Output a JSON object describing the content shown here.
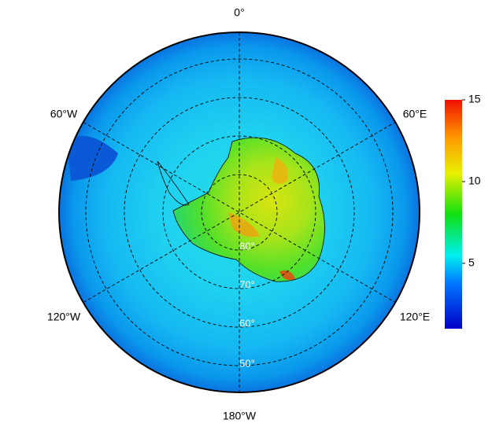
{
  "map": {
    "longitude_labels": [
      "0°",
      "60°E",
      "120°E",
      "180°W",
      "120°W",
      "60°W"
    ],
    "latitude_labels": [
      "80°",
      "70°",
      "60°",
      "50°"
    ],
    "colorbar": {
      "lim": [
        1,
        15
      ],
      "ticks": [
        5,
        10,
        15
      ]
    }
  }
}
